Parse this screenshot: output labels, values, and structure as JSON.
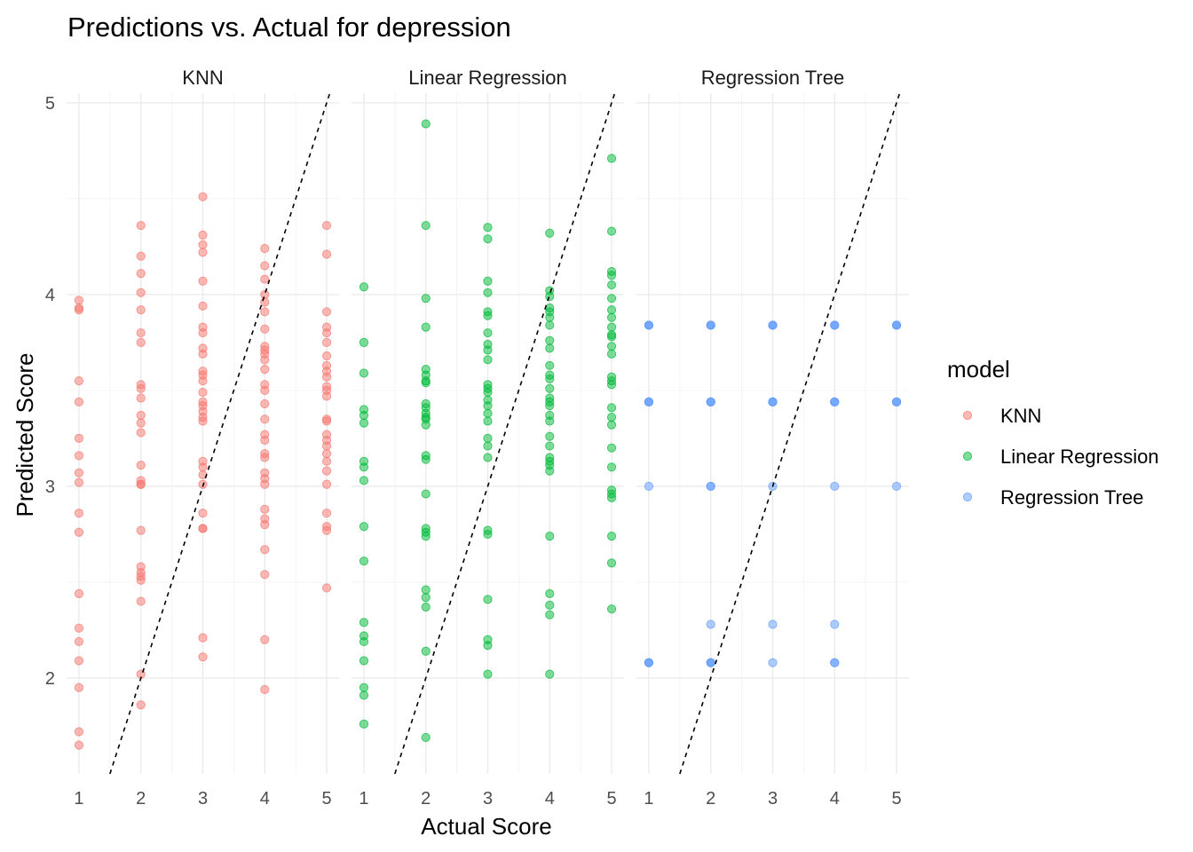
{
  "chart_data": {
    "type": "scatter",
    "title": "Predictions vs. Actual for depression",
    "xlabel": "Actual Score",
    "ylabel": "Predicted Score",
    "facets": [
      "KNN",
      "Linear Regression",
      "Regression Tree"
    ],
    "xlim": [
      0.8,
      5.2
    ],
    "ylim": [
      1.5,
      5.05
    ],
    "x_ticks": [
      1,
      2,
      3,
      4,
      5
    ],
    "y_ticks": [
      2,
      3,
      4,
      5
    ],
    "reference_line": {
      "slope": 1,
      "intercept": 0,
      "style": "dashed",
      "color": "#000000"
    },
    "legend": {
      "title": "model",
      "placement": "right"
    },
    "grid": true,
    "series": [
      {
        "name": "KNN",
        "color": "#F8766D",
        "points": [
          [
            1,
            3.97
          ],
          [
            1,
            3.93
          ],
          [
            1,
            3.92
          ],
          [
            1,
            3.55
          ],
          [
            1,
            3.44
          ],
          [
            1,
            3.25
          ],
          [
            1,
            3.16
          ],
          [
            1,
            3.07
          ],
          [
            1,
            3.02
          ],
          [
            1,
            2.86
          ],
          [
            1,
            2.76
          ],
          [
            1,
            2.44
          ],
          [
            1,
            2.26
          ],
          [
            1,
            2.19
          ],
          [
            1,
            2.09
          ],
          [
            1,
            1.95
          ],
          [
            1,
            1.72
          ],
          [
            1,
            1.65
          ],
          [
            2,
            4.36
          ],
          [
            2,
            4.2
          ],
          [
            2,
            4.11
          ],
          [
            2,
            4.01
          ],
          [
            2,
            3.92
          ],
          [
            2,
            3.8
          ],
          [
            2,
            3.75
          ],
          [
            2,
            3.53
          ],
          [
            2,
            3.51
          ],
          [
            2,
            3.46
          ],
          [
            2,
            3.37
          ],
          [
            2,
            3.33
          ],
          [
            2,
            3.28
          ],
          [
            2,
            3.11
          ],
          [
            2,
            3.03
          ],
          [
            2,
            3.01
          ],
          [
            2,
            3.01
          ],
          [
            2,
            2.77
          ],
          [
            2,
            2.58
          ],
          [
            2,
            2.55
          ],
          [
            2,
            2.53
          ],
          [
            2,
            2.51
          ],
          [
            2,
            2.4
          ],
          [
            2,
            2.02
          ],
          [
            2,
            1.86
          ],
          [
            3,
            4.51
          ],
          [
            3,
            4.31
          ],
          [
            3,
            4.26
          ],
          [
            3,
            4.22
          ],
          [
            3,
            4.07
          ],
          [
            3,
            3.94
          ],
          [
            3,
            3.83
          ],
          [
            3,
            3.8
          ],
          [
            3,
            3.72
          ],
          [
            3,
            3.69
          ],
          [
            3,
            3.6
          ],
          [
            3,
            3.58
          ],
          [
            3,
            3.55
          ],
          [
            3,
            3.49
          ],
          [
            3,
            3.44
          ],
          [
            3,
            3.42
          ],
          [
            3,
            3.39
          ],
          [
            3,
            3.36
          ],
          [
            3,
            3.34
          ],
          [
            3,
            3.13
          ],
          [
            3,
            3.1
          ],
          [
            3,
            3.06
          ],
          [
            3,
            3.01
          ],
          [
            3,
            2.86
          ],
          [
            3,
            2.78
          ],
          [
            3,
            2.78
          ],
          [
            3,
            2.21
          ],
          [
            3,
            2.11
          ],
          [
            4,
            4.24
          ],
          [
            4,
            4.15
          ],
          [
            4,
            4.08
          ],
          [
            4,
            4.0
          ],
          [
            4,
            3.96
          ],
          [
            4,
            3.91
          ],
          [
            4,
            3.82
          ],
          [
            4,
            3.73
          ],
          [
            4,
            3.71
          ],
          [
            4,
            3.69
          ],
          [
            4,
            3.66
          ],
          [
            4,
            3.61
          ],
          [
            4,
            3.53
          ],
          [
            4,
            3.5
          ],
          [
            4,
            3.43
          ],
          [
            4,
            3.35
          ],
          [
            4,
            3.27
          ],
          [
            4,
            3.24
          ],
          [
            4,
            3.17
          ],
          [
            4,
            3.15
          ],
          [
            4,
            3.07
          ],
          [
            4,
            3.04
          ],
          [
            4,
            3.01
          ],
          [
            4,
            2.88
          ],
          [
            4,
            2.83
          ],
          [
            4,
            2.8
          ],
          [
            4,
            2.67
          ],
          [
            4,
            2.54
          ],
          [
            4,
            2.2
          ],
          [
            4,
            1.94
          ],
          [
            5,
            4.36
          ],
          [
            5,
            4.21
          ],
          [
            5,
            3.91
          ],
          [
            5,
            3.83
          ],
          [
            5,
            3.8
          ],
          [
            5,
            3.75
          ],
          [
            5,
            3.68
          ],
          [
            5,
            3.63
          ],
          [
            5,
            3.6
          ],
          [
            5,
            3.57
          ],
          [
            5,
            3.52
          ],
          [
            5,
            3.5
          ],
          [
            5,
            3.47
          ],
          [
            5,
            3.35
          ],
          [
            5,
            3.34
          ],
          [
            5,
            3.27
          ],
          [
            5,
            3.24
          ],
          [
            5,
            3.21
          ],
          [
            5,
            3.17
          ],
          [
            5,
            3.13
          ],
          [
            5,
            3.08
          ],
          [
            5,
            3.01
          ],
          [
            5,
            2.86
          ],
          [
            5,
            2.79
          ],
          [
            5,
            2.77
          ],
          [
            5,
            2.47
          ]
        ]
      },
      {
        "name": "Linear Regression",
        "color": "#00BA38",
        "points": [
          [
            1,
            4.04
          ],
          [
            1,
            3.75
          ],
          [
            1,
            3.59
          ],
          [
            1,
            3.4
          ],
          [
            1,
            3.37
          ],
          [
            1,
            3.33
          ],
          [
            1,
            3.13
          ],
          [
            1,
            3.1
          ],
          [
            1,
            3.03
          ],
          [
            1,
            2.79
          ],
          [
            1,
            2.61
          ],
          [
            1,
            2.29
          ],
          [
            1,
            2.22
          ],
          [
            1,
            2.19
          ],
          [
            1,
            2.09
          ],
          [
            1,
            1.95
          ],
          [
            1,
            1.91
          ],
          [
            1,
            1.76
          ],
          [
            2,
            4.89
          ],
          [
            2,
            4.36
          ],
          [
            2,
            3.98
          ],
          [
            2,
            3.83
          ],
          [
            2,
            3.61
          ],
          [
            2,
            3.58
          ],
          [
            2,
            3.55
          ],
          [
            2,
            3.54
          ],
          [
            2,
            3.43
          ],
          [
            2,
            3.41
          ],
          [
            2,
            3.38
          ],
          [
            2,
            3.36
          ],
          [
            2,
            3.35
          ],
          [
            2,
            3.32
          ],
          [
            2,
            3.16
          ],
          [
            2,
            3.14
          ],
          [
            2,
            2.96
          ],
          [
            2,
            2.78
          ],
          [
            2,
            2.76
          ],
          [
            2,
            2.74
          ],
          [
            2,
            2.46
          ],
          [
            2,
            2.42
          ],
          [
            2,
            2.37
          ],
          [
            2,
            2.14
          ],
          [
            2,
            1.69
          ],
          [
            3,
            4.35
          ],
          [
            3,
            4.29
          ],
          [
            3,
            4.07
          ],
          [
            3,
            4.01
          ],
          [
            3,
            3.91
          ],
          [
            3,
            3.89
          ],
          [
            3,
            3.8
          ],
          [
            3,
            3.74
          ],
          [
            3,
            3.71
          ],
          [
            3,
            3.66
          ],
          [
            3,
            3.53
          ],
          [
            3,
            3.51
          ],
          [
            3,
            3.49
          ],
          [
            3,
            3.45
          ],
          [
            3,
            3.42
          ],
          [
            3,
            3.38
          ],
          [
            3,
            3.34
          ],
          [
            3,
            3.25
          ],
          [
            3,
            3.21
          ],
          [
            3,
            3.15
          ],
          [
            3,
            2.77
          ],
          [
            3,
            2.75
          ],
          [
            3,
            2.41
          ],
          [
            3,
            2.2
          ],
          [
            3,
            2.17
          ],
          [
            3,
            2.02
          ],
          [
            4,
            4.32
          ],
          [
            4,
            4.02
          ],
          [
            4,
            3.99
          ],
          [
            4,
            3.93
          ],
          [
            4,
            3.91
          ],
          [
            4,
            3.88
          ],
          [
            4,
            3.84
          ],
          [
            4,
            3.76
          ],
          [
            4,
            3.72
          ],
          [
            4,
            3.63
          ],
          [
            4,
            3.58
          ],
          [
            4,
            3.56
          ],
          [
            4,
            3.51
          ],
          [
            4,
            3.46
          ],
          [
            4,
            3.44
          ],
          [
            4,
            3.42
          ],
          [
            4,
            3.37
          ],
          [
            4,
            3.34
          ],
          [
            4,
            3.26
          ],
          [
            4,
            3.21
          ],
          [
            4,
            3.15
          ],
          [
            4,
            3.13
          ],
          [
            4,
            3.11
          ],
          [
            4,
            3.08
          ],
          [
            4,
            2.74
          ],
          [
            4,
            2.44
          ],
          [
            4,
            2.38
          ],
          [
            4,
            2.33
          ],
          [
            4,
            2.02
          ],
          [
            5,
            4.71
          ],
          [
            5,
            4.33
          ],
          [
            5,
            4.12
          ],
          [
            5,
            4.1
          ],
          [
            5,
            4.05
          ],
          [
            5,
            3.98
          ],
          [
            5,
            3.92
          ],
          [
            5,
            3.88
          ],
          [
            5,
            3.83
          ],
          [
            5,
            3.79
          ],
          [
            5,
            3.78
          ],
          [
            5,
            3.73
          ],
          [
            5,
            3.69
          ],
          [
            5,
            3.57
          ],
          [
            5,
            3.55
          ],
          [
            5,
            3.53
          ],
          [
            5,
            3.41
          ],
          [
            5,
            3.36
          ],
          [
            5,
            3.32
          ],
          [
            5,
            3.2
          ],
          [
            5,
            3.1
          ],
          [
            5,
            2.98
          ],
          [
            5,
            2.96
          ],
          [
            5,
            2.94
          ],
          [
            5,
            2.74
          ],
          [
            5,
            2.6
          ],
          [
            5,
            2.36
          ]
        ]
      },
      {
        "name": "Regression Tree",
        "color": "#619CFF",
        "points": [
          [
            1,
            3.84
          ],
          [
            1,
            3.84
          ],
          [
            1,
            3.84
          ],
          [
            1,
            3.44
          ],
          [
            1,
            3.44
          ],
          [
            1,
            3.44
          ],
          [
            1,
            3.0
          ],
          [
            1,
            2.08
          ],
          [
            1,
            2.08
          ],
          [
            1,
            2.08
          ],
          [
            2,
            3.84
          ],
          [
            2,
            3.84
          ],
          [
            2,
            3.84
          ],
          [
            2,
            3.44
          ],
          [
            2,
            3.44
          ],
          [
            2,
            3.44
          ],
          [
            2,
            3.0
          ],
          [
            2,
            3.0
          ],
          [
            2,
            2.28
          ],
          [
            2,
            2.08
          ],
          [
            2,
            2.08
          ],
          [
            2,
            2.08
          ],
          [
            3,
            3.84
          ],
          [
            3,
            3.84
          ],
          [
            3,
            3.84
          ],
          [
            3,
            3.44
          ],
          [
            3,
            3.44
          ],
          [
            3,
            3.44
          ],
          [
            3,
            3.0
          ],
          [
            3,
            2.28
          ],
          [
            3,
            2.08
          ],
          [
            4,
            3.84
          ],
          [
            4,
            3.84
          ],
          [
            4,
            3.84
          ],
          [
            4,
            3.44
          ],
          [
            4,
            3.44
          ],
          [
            4,
            3.44
          ],
          [
            4,
            3.0
          ],
          [
            4,
            2.28
          ],
          [
            4,
            2.08
          ],
          [
            4,
            2.08
          ],
          [
            5,
            3.84
          ],
          [
            5,
            3.84
          ],
          [
            5,
            3.84
          ],
          [
            5,
            3.44
          ],
          [
            5,
            3.44
          ],
          [
            5,
            3.44
          ],
          [
            5,
            3.0
          ]
        ]
      }
    ]
  }
}
